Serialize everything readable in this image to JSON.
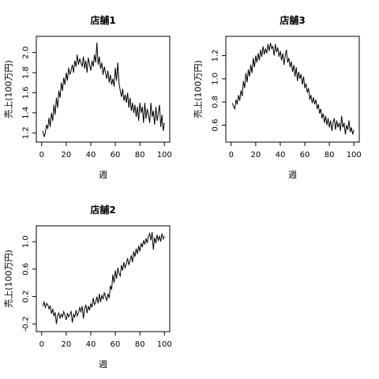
{
  "chart_data": [
    {
      "type": "line",
      "title": "店舗1",
      "xlabel": "週",
      "ylabel": "売上(100万円)",
      "xlim": [
        0,
        100
      ],
      "ylim": [
        1.15,
        2.12
      ],
      "xticks": [
        0,
        20,
        40,
        60,
        80,
        100
      ],
      "xtick_labels": [
        "0",
        "20",
        "40",
        "60",
        "80",
        "100"
      ],
      "yticks": [
        1.2,
        1.4,
        1.6,
        1.8,
        2.0
      ],
      "ytick_labels": [
        "1.2",
        "1.4",
        "1.6",
        "1.8",
        "2.0"
      ],
      "series": [
        {
          "x": [
            1,
            2,
            3,
            4,
            5,
            6,
            7,
            8,
            9,
            10,
            11,
            12,
            13,
            14,
            15,
            16,
            17,
            18,
            19,
            20,
            21,
            22,
            23,
            24,
            25,
            26,
            27,
            28,
            29,
            30,
            31,
            32,
            33,
            34,
            35,
            36,
            37,
            38,
            39,
            40,
            41,
            42,
            43,
            44,
            45,
            46,
            47,
            48,
            49,
            50,
            51,
            52,
            53,
            54,
            55,
            56,
            57,
            58,
            59,
            60,
            61,
            62,
            63,
            64,
            65,
            66,
            67,
            68,
            69,
            70,
            71,
            72,
            73,
            74,
            75,
            76,
            77,
            78,
            79,
            80,
            81,
            82,
            83,
            84,
            85,
            86,
            87,
            88,
            89,
            90,
            91,
            92,
            93,
            94,
            95,
            96,
            97,
            98,
            99,
            100
          ],
          "y": [
            1.22,
            1.16,
            1.2,
            1.28,
            1.24,
            1.35,
            1.26,
            1.4,
            1.32,
            1.48,
            1.38,
            1.55,
            1.45,
            1.62,
            1.55,
            1.7,
            1.62,
            1.75,
            1.68,
            1.8,
            1.72,
            1.85,
            1.78,
            1.82,
            1.88,
            1.8,
            1.92,
            1.86,
            1.98,
            1.88,
            1.94,
            1.9,
            1.86,
            1.96,
            1.84,
            1.92,
            1.8,
            1.95,
            1.88,
            1.82,
            1.92,
            1.86,
            1.98,
            1.9,
            2.1,
            1.88,
            1.96,
            1.84,
            1.9,
            1.78,
            1.86,
            1.8,
            1.74,
            1.82,
            1.7,
            1.78,
            1.68,
            1.74,
            1.66,
            1.85,
            1.72,
            1.9,
            1.7,
            1.62,
            1.56,
            1.64,
            1.52,
            1.58,
            1.5,
            1.6,
            1.45,
            1.55,
            1.42,
            1.5,
            1.4,
            1.48,
            1.36,
            1.46,
            1.32,
            1.5,
            1.4,
            1.46,
            1.3,
            1.5,
            1.34,
            1.44,
            1.38,
            1.3,
            1.5,
            1.36,
            1.42,
            1.28,
            1.46,
            1.32,
            1.4,
            1.48,
            1.26,
            1.38,
            1.22,
            1.3
          ]
        }
      ]
    },
    {
      "type": "line",
      "title": "店舗3",
      "xlabel": "週",
      "ylabel": "売上(100万円)",
      "xlim": [
        0,
        100
      ],
      "ylim": [
        0.49,
        1.33
      ],
      "xticks": [
        0,
        20,
        40,
        60,
        80,
        100
      ],
      "xtick_labels": [
        "0",
        "20",
        "40",
        "60",
        "80",
        "100"
      ],
      "yticks": [
        0.6,
        0.8,
        1.0,
        1.2
      ],
      "ytick_labels": [
        "0.6",
        "0.8",
        "1.0",
        "1.2"
      ],
      "series": [
        {
          "x": [
            1,
            2,
            3,
            4,
            5,
            6,
            7,
            8,
            9,
            10,
            11,
            12,
            13,
            14,
            15,
            16,
            17,
            18,
            19,
            20,
            21,
            22,
            23,
            24,
            25,
            26,
            27,
            28,
            29,
            30,
            31,
            32,
            33,
            34,
            35,
            36,
            37,
            38,
            39,
            40,
            41,
            42,
            43,
            44,
            45,
            46,
            47,
            48,
            49,
            50,
            51,
            52,
            53,
            54,
            55,
            56,
            57,
            58,
            59,
            60,
            61,
            62,
            63,
            64,
            65,
            66,
            67,
            68,
            69,
            70,
            71,
            72,
            73,
            74,
            75,
            76,
            77,
            78,
            79,
            80,
            81,
            82,
            83,
            84,
            85,
            86,
            87,
            88,
            89,
            90,
            91,
            92,
            93,
            94,
            95,
            96,
            97,
            98,
            99,
            100
          ],
          "y": [
            0.79,
            0.76,
            0.74,
            0.82,
            0.78,
            0.86,
            0.81,
            0.9,
            0.85,
            0.98,
            0.92,
            1.05,
            0.97,
            1.08,
            1.02,
            1.12,
            1.05,
            1.18,
            1.1,
            1.2,
            1.14,
            1.22,
            1.16,
            1.25,
            1.19,
            1.28,
            1.21,
            1.26,
            1.22,
            1.3,
            1.24,
            1.31,
            1.26,
            1.28,
            1.2,
            1.3,
            1.23,
            1.27,
            1.19,
            1.24,
            1.16,
            1.22,
            1.12,
            1.2,
            1.25,
            1.14,
            1.18,
            1.1,
            1.15,
            1.06,
            1.12,
            1.02,
            1.1,
            0.98,
            1.06,
            1.0,
            1.04,
            0.95,
            1.02,
            0.92,
            0.96,
            0.88,
            0.92,
            0.82,
            0.86,
            0.79,
            0.84,
            0.78,
            0.82,
            0.74,
            0.78,
            0.7,
            0.74,
            0.66,
            0.7,
            0.62,
            0.68,
            0.6,
            0.66,
            0.58,
            0.64,
            0.55,
            0.62,
            0.66,
            0.56,
            0.64,
            0.58,
            0.62,
            0.55,
            0.68,
            0.58,
            0.62,
            0.52,
            0.6,
            0.56,
            0.64,
            0.54,
            0.58,
            0.52,
            0.56
          ]
        }
      ]
    },
    {
      "type": "line",
      "title": "店舗2",
      "xlabel": "週",
      "ylabel": "売上(100万円)",
      "xlim": [
        0,
        100
      ],
      "ylim": [
        -0.25,
        1.17
      ],
      "xticks": [
        0,
        20,
        40,
        60,
        80,
        100
      ],
      "xtick_labels": [
        "0",
        "20",
        "40",
        "60",
        "80",
        "100"
      ],
      "yticks": [
        -0.2,
        0.2,
        0.6,
        1.0
      ],
      "ytick_labels": [
        "-0.2",
        "0.2",
        "0.6",
        "1.0"
      ],
      "series": [
        {
          "x": [
            1,
            2,
            3,
            4,
            5,
            6,
            7,
            8,
            9,
            10,
            11,
            12,
            13,
            14,
            15,
            16,
            17,
            18,
            19,
            20,
            21,
            22,
            23,
            24,
            25,
            26,
            27,
            28,
            29,
            30,
            31,
            32,
            33,
            34,
            35,
            36,
            37,
            38,
            39,
            40,
            41,
            42,
            43,
            44,
            45,
            46,
            47,
            48,
            49,
            50,
            51,
            52,
            53,
            54,
            55,
            56,
            57,
            58,
            59,
            60,
            61,
            62,
            63,
            64,
            65,
            66,
            67,
            68,
            69,
            70,
            71,
            72,
            73,
            74,
            75,
            76,
            77,
            78,
            79,
            80,
            81,
            82,
            83,
            84,
            85,
            86,
            87,
            88,
            89,
            90,
            91,
            92,
            93,
            94,
            95,
            96,
            97,
            98,
            99,
            100
          ],
          "y": [
            0.06,
            0.12,
            0.04,
            0.1,
            0.08,
            0.02,
            0.07,
            -0.05,
            0.02,
            -0.08,
            -0.03,
            -0.2,
            -0.08,
            -0.04,
            -0.12,
            -0.06,
            -0.1,
            -0.02,
            -0.08,
            -0.14,
            -0.04,
            -0.1,
            -0.06,
            -0.02,
            -0.18,
            -0.06,
            -0.1,
            0.0,
            -0.08,
            -0.04,
            0.04,
            -0.02,
            0.06,
            -0.12,
            0.02,
            0.08,
            -0.04,
            0.06,
            0.0,
            0.1,
            0.04,
            0.18,
            0.08,
            0.12,
            0.2,
            0.1,
            0.24,
            0.12,
            0.22,
            0.16,
            0.26,
            0.2,
            0.14,
            0.24,
            0.18,
            0.36,
            0.3,
            0.52,
            0.4,
            0.58,
            0.46,
            0.62,
            0.54,
            0.5,
            0.66,
            0.58,
            0.7,
            0.62,
            0.68,
            0.76,
            0.66,
            0.72,
            0.8,
            0.7,
            0.86,
            0.78,
            0.9,
            0.82,
            0.94,
            0.86,
            0.98,
            0.92,
            1.02,
            0.96,
            1.05,
            0.98,
            1.08,
            1.12,
            1.02,
            1.14,
            0.88,
            1.06,
            0.98,
            1.1,
            1.02,
            1.08,
            1.0,
            1.12,
            1.04,
            1.08
          ]
        }
      ]
    }
  ]
}
